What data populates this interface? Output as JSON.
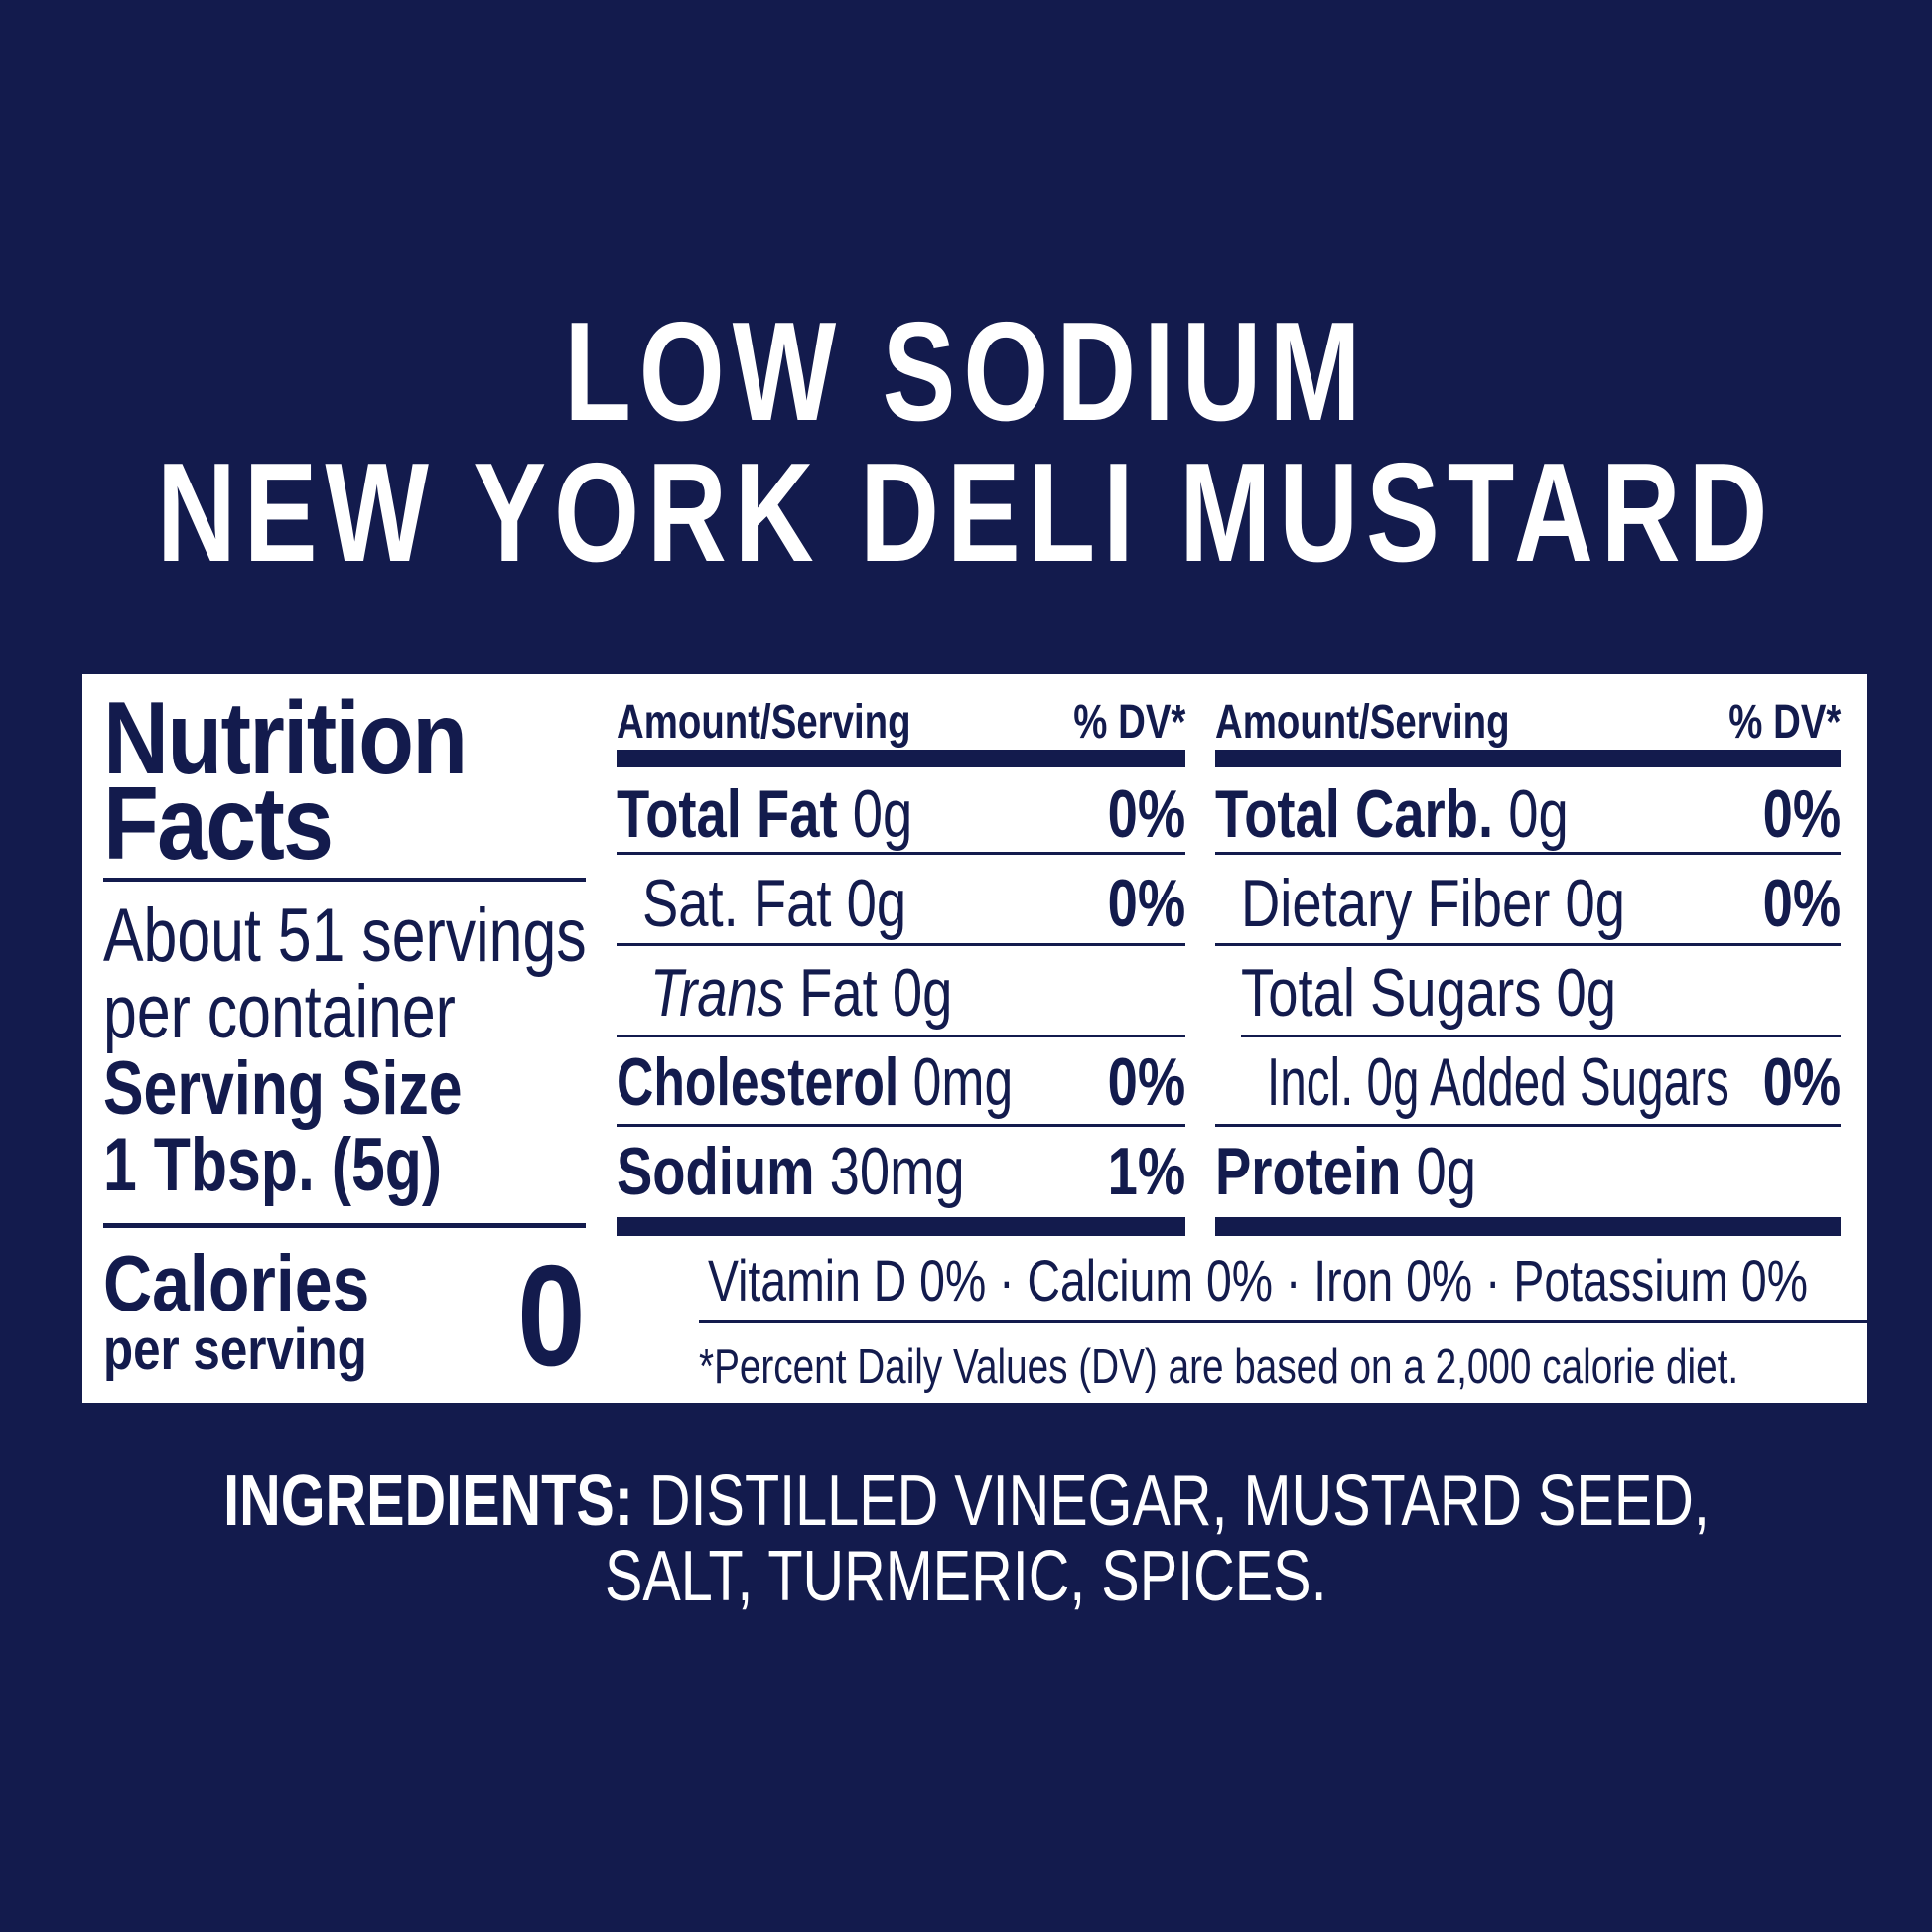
{
  "title": {
    "line1": "LOW SODIUM",
    "line2": "NEW YORK DELI MUSTARD"
  },
  "colors": {
    "background": "#131b4d",
    "panel": "#ffffff",
    "text": "#131b4d"
  },
  "nutrition": {
    "heading_line1": "Nutrition",
    "heading_line2": "Facts",
    "servings_line1": "About 51 servings",
    "servings_line2": "per container",
    "serving_size_label": "Serving Size",
    "serving_size_value": "1 Tbsp. (5g)",
    "calories_label": "Calories",
    "calories_sub": "per serving",
    "calories_value": "0",
    "left_table": {
      "header_amount": "Amount/Serving",
      "header_dv": "% DV*",
      "rows": [
        {
          "name": "Total Fat",
          "amount": "0g",
          "dv": "0%"
        },
        {
          "name": "Sat. Fat",
          "amount": "0g",
          "dv": "0%"
        },
        {
          "name": "Trans",
          "amount": "Fat 0g",
          "dv": ""
        },
        {
          "name": "Cholesterol",
          "amount": "0mg",
          "dv": "0%"
        },
        {
          "name": "Sodium",
          "amount": "30mg",
          "dv": "1%"
        }
      ]
    },
    "right_table": {
      "header_amount": "Amount/Serving",
      "header_dv": "% DV*",
      "rows": [
        {
          "name": "Total Carb.",
          "amount": "0g",
          "dv": "0%"
        },
        {
          "name": "Dietary Fiber",
          "amount": "0g",
          "dv": "0%"
        },
        {
          "name": "Total Sugars",
          "amount": "0g",
          "dv": ""
        },
        {
          "name": "Incl. 0g Added Sugars",
          "amount": "",
          "dv": "0%"
        },
        {
          "name": "Protein",
          "amount": "0g",
          "dv": ""
        }
      ]
    },
    "vitamins": "Vitamin D 0% · Calcium 0% · Iron 0% · Potassium 0%",
    "footnote": "*Percent Daily Values (DV) are based on a 2,000 calorie diet."
  },
  "ingredients": {
    "label": "INGREDIENTS:",
    "line1": "DISTILLED VINEGAR, MUSTARD SEED,",
    "line2": "SALT, TURMERIC, SPICES."
  }
}
